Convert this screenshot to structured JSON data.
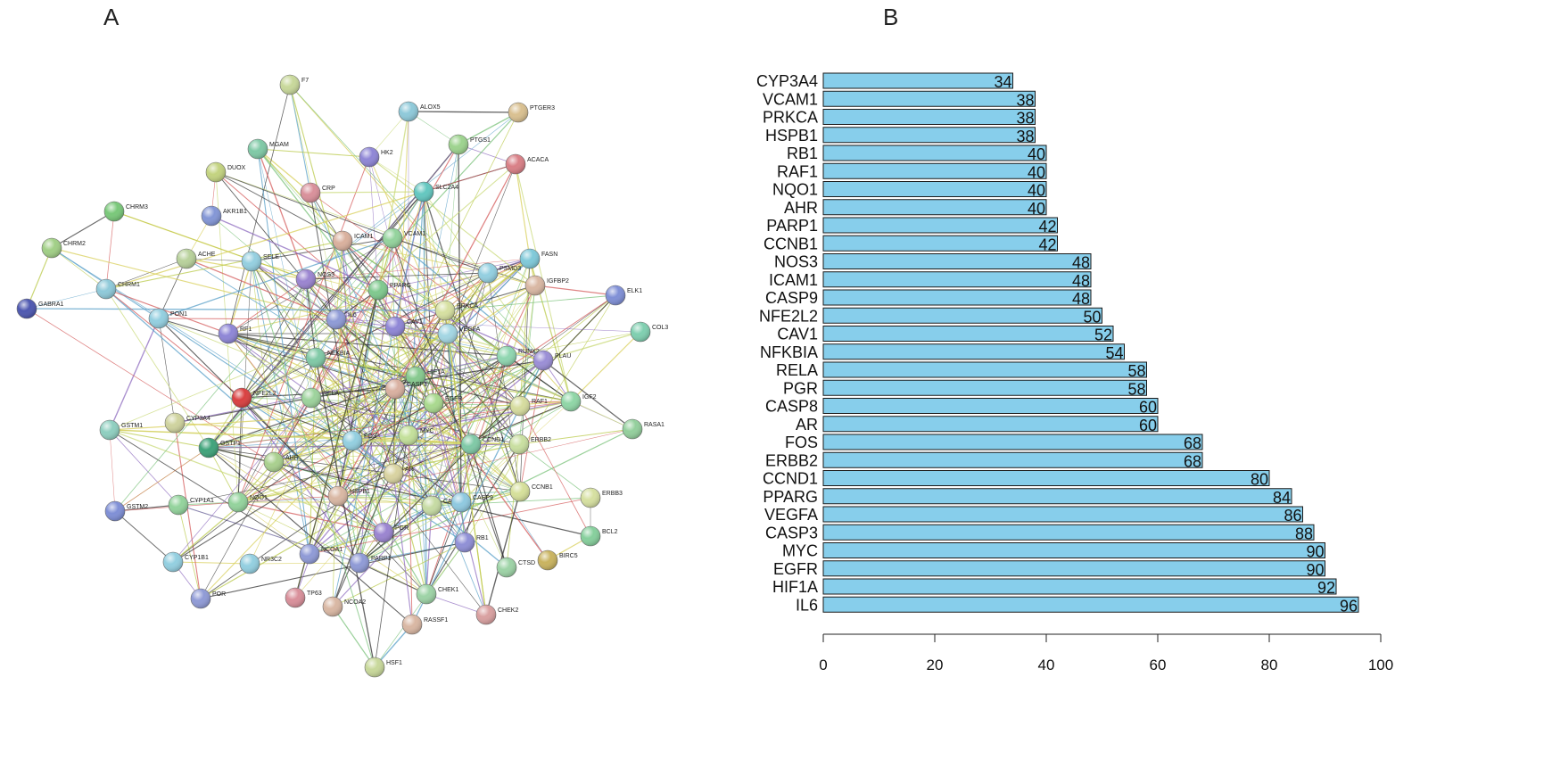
{
  "panels": {
    "a_label": "A",
    "b_label": "B"
  },
  "chart_data": [
    {
      "type": "network",
      "title": "A",
      "nodes": [
        {
          "name": "F7",
          "color": "#c8d89a"
        },
        {
          "name": "ALOX5",
          "color": "#8ec9d9"
        },
        {
          "name": "PTGER3",
          "color": "#d9c090"
        },
        {
          "name": "MGAM",
          "color": "#7fc9a6"
        },
        {
          "name": "HK2",
          "color": "#8f86d6"
        },
        {
          "name": "PTGS1",
          "color": "#9dd38e"
        },
        {
          "name": "ACACA",
          "color": "#d97f86"
        },
        {
          "name": "DUOX",
          "color": "#c3d37f"
        },
        {
          "name": "CRP",
          "color": "#d9909a"
        },
        {
          "name": "SLC2A4",
          "color": "#63c7c0"
        },
        {
          "name": "CHRM3",
          "color": "#79c879"
        },
        {
          "name": "AKR1B1",
          "color": "#8396d6"
        },
        {
          "name": "ICAM1",
          "color": "#d9b09d"
        },
        {
          "name": "VCAM1",
          "color": "#93d39c"
        },
        {
          "name": "CHRM2",
          "color": "#a1cf86"
        },
        {
          "name": "ACHE",
          "color": "#b8d19b"
        },
        {
          "name": "SELE",
          "color": "#94cfe0"
        },
        {
          "name": "FASN",
          "color": "#7fc9d9"
        },
        {
          "name": "PSMD3",
          "color": "#93cfe0"
        },
        {
          "name": "IGFBP2",
          "color": "#d9b7a3"
        },
        {
          "name": "GABRA1",
          "color": "#4d57b0"
        },
        {
          "name": "CHRM1",
          "color": "#8ec9d9"
        },
        {
          "name": "NOS3",
          "color": "#9a84d0"
        },
        {
          "name": "PPARG",
          "color": "#7fc98e"
        },
        {
          "name": "PRKCA",
          "color": "#d6e0a0"
        },
        {
          "name": "ELK1",
          "color": "#7f8fd6"
        },
        {
          "name": "PON1",
          "color": "#93cfe0"
        },
        {
          "name": "RF1",
          "color": "#8e86d6"
        },
        {
          "name": "IL6",
          "color": "#8e9ad6"
        },
        {
          "name": "CAV1",
          "color": "#8f86d6"
        },
        {
          "name": "VEGFA",
          "color": "#a3d6e3"
        },
        {
          "name": "COL3",
          "color": "#7fcfb0"
        },
        {
          "name": "NFKBIA",
          "color": "#7fc9a6"
        },
        {
          "name": "RUNX2",
          "color": "#8fd6b0"
        },
        {
          "name": "PLAU",
          "color": "#9a8ed6"
        },
        {
          "name": "NFE2L2",
          "color": "#d94040"
        },
        {
          "name": "RELA",
          "color": "#9dd39c"
        },
        {
          "name": "HIF1A",
          "color": "#86c98e"
        },
        {
          "name": "CASP3",
          "color": "#d9b0a0"
        },
        {
          "name": "EGFR",
          "color": "#a9d98e"
        },
        {
          "name": "RAF1",
          "color": "#d6dc9e"
        },
        {
          "name": "IGF2",
          "color": "#8fd6a6"
        },
        {
          "name": "GSTM1",
          "color": "#8fcfc0"
        },
        {
          "name": "CYP3A4",
          "color": "#cfd39e"
        },
        {
          "name": "MYC",
          "color": "#c3e09a"
        },
        {
          "name": "CCND1",
          "color": "#7fc9a6"
        },
        {
          "name": "RASA1",
          "color": "#93cf9c"
        },
        {
          "name": "GSTP1",
          "color": "#3fa37a"
        },
        {
          "name": "FOS",
          "color": "#93cfe0"
        },
        {
          "name": "AHR",
          "color": "#a9d08e"
        },
        {
          "name": "ERBB2",
          "color": "#c9dfa0"
        },
        {
          "name": "AR",
          "color": "#d9d3a0"
        },
        {
          "name": "GSTM2",
          "color": "#7f8fd6"
        },
        {
          "name": "CYP1A1",
          "color": "#93d39c"
        },
        {
          "name": "NQO1",
          "color": "#93d39c"
        },
        {
          "name": "HSPB1",
          "color": "#d9b7a3"
        },
        {
          "name": "CASP8",
          "color": "#c6dba3"
        },
        {
          "name": "CASP9",
          "color": "#8fc9e0"
        },
        {
          "name": "CCNB1",
          "color": "#d6e09a"
        },
        {
          "name": "ERBB3",
          "color": "#d6e0a0"
        },
        {
          "name": "PGR",
          "color": "#9a84d0"
        },
        {
          "name": "RB1",
          "color": "#8f8fd6"
        },
        {
          "name": "BCL2",
          "color": "#86cf9c"
        },
        {
          "name": "CYP1B1",
          "color": "#93cfe0"
        },
        {
          "name": "NR3C2",
          "color": "#93cfe0"
        },
        {
          "name": "NCOA1",
          "color": "#8f9ad6"
        },
        {
          "name": "PARP1",
          "color": "#8f9ad6"
        },
        {
          "name": "BIRC5",
          "color": "#c9b35f"
        },
        {
          "name": "CTSD",
          "color": "#9dd3a6"
        },
        {
          "name": "POR",
          "color": "#8f9ad6"
        },
        {
          "name": "TP63",
          "color": "#d98f9a"
        },
        {
          "name": "NCOA2",
          "color": "#d9b7a3"
        },
        {
          "name": "CHEK1",
          "color": "#9dd3a6"
        },
        {
          "name": "CHEK2",
          "color": "#d9a0a0"
        },
        {
          "name": "RASSF1",
          "color": "#d9b7a3"
        },
        {
          "name": "HSF1",
          "color": "#c8d89a"
        }
      ]
    },
    {
      "type": "bar",
      "orientation": "horizontal",
      "title": "B",
      "categories": [
        "CYP3A4",
        "VCAM1",
        "PRKCA",
        "HSPB1",
        "RB1",
        "RAF1",
        "NQO1",
        "AHR",
        "PARP1",
        "CCNB1",
        "NOS3",
        "ICAM1",
        "CASP9",
        "NFE2L2",
        "CAV1",
        "NFKBIA",
        "RELA",
        "PGR",
        "CASP8",
        "AR",
        "FOS",
        "ERBB2",
        "CCND1",
        "PPARG",
        "VEGFA",
        "CASP3",
        "MYC",
        "EGFR",
        "HIF1A",
        "IL6"
      ],
      "values": [
        34,
        38,
        38,
        38,
        40,
        40,
        40,
        40,
        42,
        42,
        48,
        48,
        48,
        50,
        52,
        54,
        58,
        58,
        60,
        60,
        68,
        68,
        80,
        84,
        86,
        88,
        90,
        90,
        92,
        96
      ],
      "xlim": [
        0,
        100
      ],
      "xticks": [
        0,
        20,
        40,
        60,
        80,
        100
      ],
      "bar_color": "#87ceeb",
      "xlabel": "",
      "ylabel": ""
    }
  ]
}
